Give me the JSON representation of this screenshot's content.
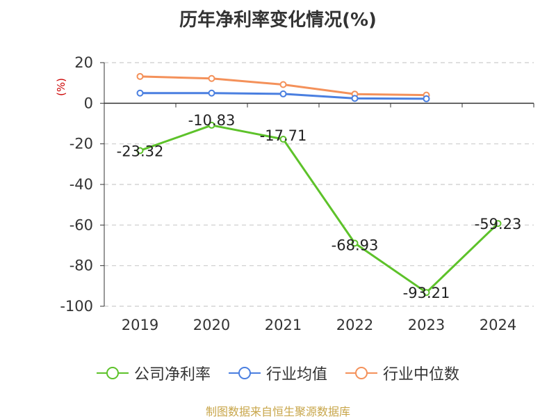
{
  "title": "历年净利率变化情况(%)",
  "source": "制图数据来自恒生聚源数据库",
  "colors": {
    "company": "#5dc22a",
    "industry_avg": "#4a7fe0",
    "industry_median": "#f4915a",
    "axis_unit": "#cc0000",
    "grid": "#cccccc",
    "axis": "#333333",
    "source_text": "#c8a64a"
  },
  "chart_data": {
    "type": "line",
    "title": "历年净利率变化情况(%)",
    "ylabel": "(%)",
    "xlabel": "",
    "categories": [
      "2019",
      "2020",
      "2021",
      "2022",
      "2023",
      "2024"
    ],
    "ylim": [
      -100,
      20
    ],
    "yticks": [
      20,
      0,
      -20,
      -40,
      -60,
      -80,
      -100
    ],
    "grid": true,
    "legend_position": "bottom",
    "series": [
      {
        "name": "公司净利率",
        "key": "company",
        "values": [
          -23.32,
          -10.83,
          -17.71,
          -68.93,
          -93.21,
          -59.23
        ],
        "labels": [
          "-23.32",
          "-10.83",
          "-17.71",
          "-68.93",
          "-93.21",
          "-59.23"
        ]
      },
      {
        "name": "行业均值",
        "key": "industry_avg",
        "values": [
          5.0,
          5.0,
          4.6,
          2.4,
          2.2,
          null
        ]
      },
      {
        "name": "行业中位数",
        "key": "industry_median",
        "values": [
          13.2,
          12.2,
          9.2,
          4.5,
          4.0,
          null
        ]
      }
    ]
  }
}
